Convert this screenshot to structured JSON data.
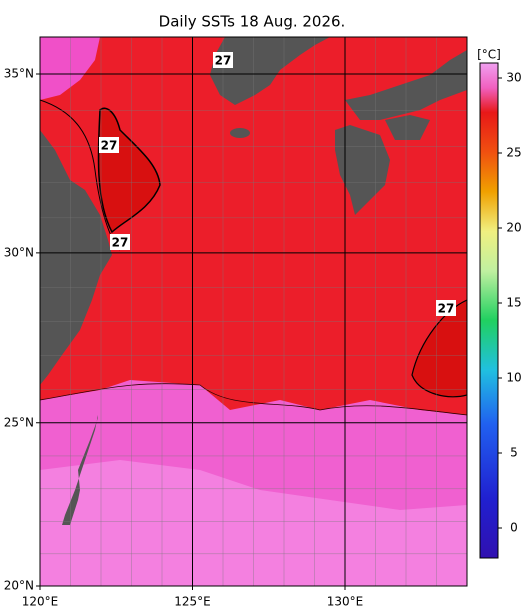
{
  "title": "Daily SSTs 18 Aug. 2026.",
  "map": {
    "lonlim": [
      120,
      134
    ],
    "latlim": [
      20,
      36
    ],
    "xticks": [
      {
        "value": 120,
        "label": "120°E"
      },
      {
        "value": 125,
        "label": "125°E"
      },
      {
        "value": 130,
        "label": "130°E"
      }
    ],
    "yticks": [
      {
        "value": 20,
        "label": "20°N"
      },
      {
        "value": 25,
        "label": "25°N"
      },
      {
        "value": 30,
        "label": "30°N"
      },
      {
        "value": 35,
        "label": "35°N"
      }
    ],
    "contour_labels": [
      "27",
      "27",
      "27",
      "27"
    ]
  },
  "colorbar": {
    "label": "[°C]",
    "vlim": [
      -2,
      31
    ],
    "ticks": [
      0,
      5,
      10,
      15,
      20,
      25,
      30
    ]
  }
}
